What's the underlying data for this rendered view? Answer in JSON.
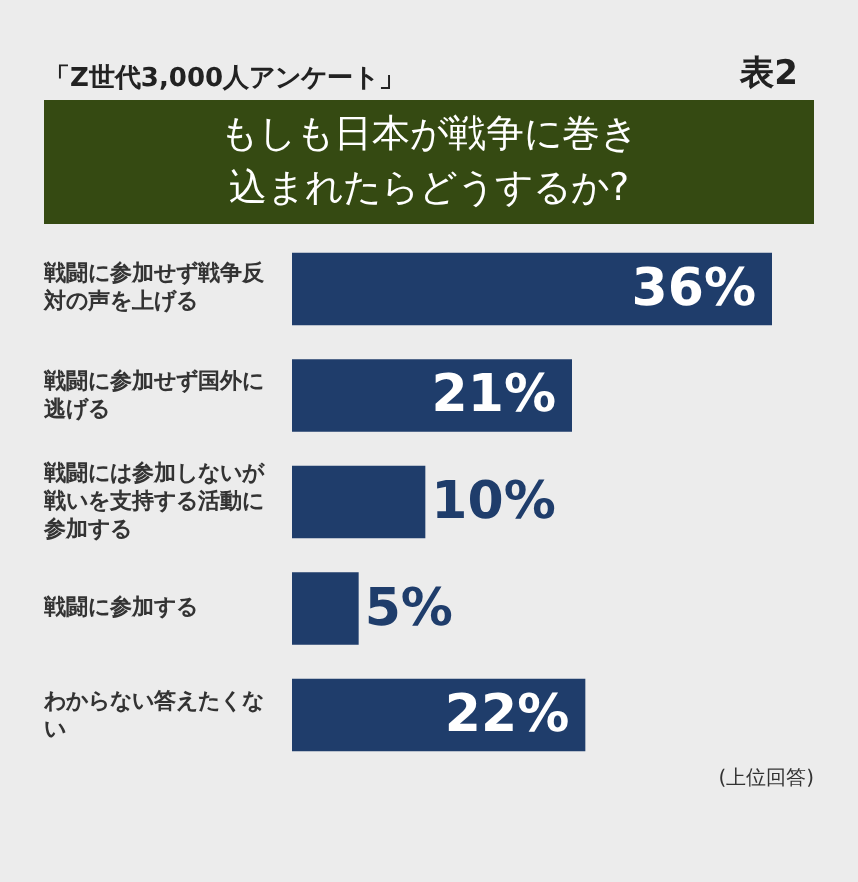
{
  "chart_data": {
    "type": "bar",
    "orientation": "horizontal",
    "subtitle": "「Z世代3,000人アンケート」",
    "title": "もしも日本が戦争に巻き込まれたらどうするか?",
    "annotations": [
      "表2",
      "(上位回答)"
    ],
    "categories": [
      "戦闘に参加せず戦争反対の声を上げる",
      "戦闘に参加せず国外に逃げる",
      "戦闘には参加しないが戦いを支持する活動に参加する",
      "戦闘に参加する",
      "わからない答えたくない"
    ],
    "values": [
      36,
      21,
      10,
      5,
      22
    ],
    "value_labels": [
      "36%",
      "21%",
      "10%",
      "5%",
      "22%"
    ],
    "color": "#1f3d6b"
  }
}
